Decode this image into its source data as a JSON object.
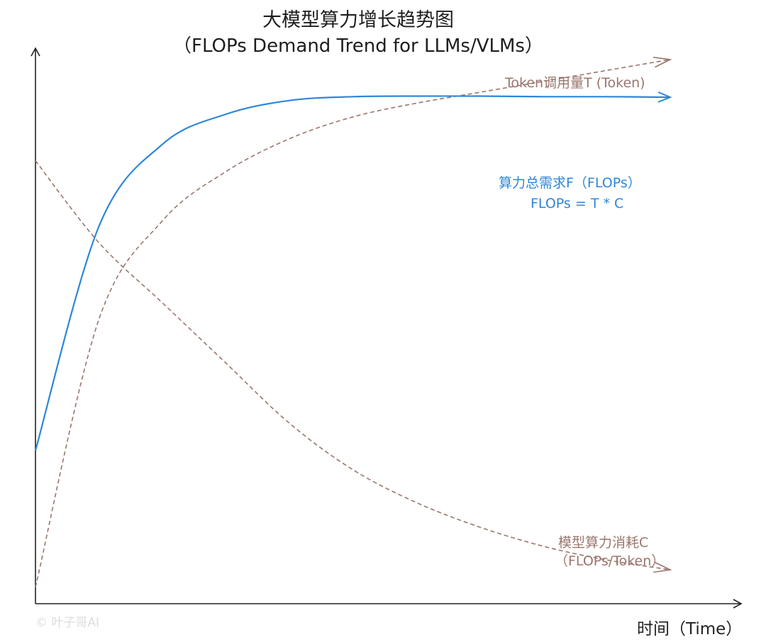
{
  "title": "大模型算力增长趋势图",
  "subtitle": "（FLOPs Demand Trend for LLMs/VLMs）",
  "xlabel": "时间（Time）",
  "watermark": "© 叶子哥AI",
  "colors": {
    "flops": "#2e86d9",
    "token": "#9a766c",
    "cost": "#9a766c",
    "axis": "#222222"
  },
  "chart_data": {
    "type": "line",
    "title": "大模型算力增长趋势图",
    "subtitle": "（FLOPs Demand Trend for LLMs/VLMs）",
    "xlabel": "时间（Time）",
    "ylabel": "",
    "x_ticks": "none",
    "y_ticks": "none",
    "grid": false,
    "legend": "none (series labelled inline at line ends)",
    "xlim": [
      0,
      10
    ],
    "ylim": [
      0,
      10
    ],
    "x": [
      0,
      1,
      2,
      3,
      4,
      5,
      6,
      7,
      8,
      9,
      10
    ],
    "series": [
      {
        "name": "Token调用量T (Token)",
        "label_lines": [
          "Token调用量T (Token)"
        ],
        "style": "dashed",
        "color": "#9a766c",
        "values": [
          0.3,
          5.2,
          7.0,
          7.9,
          8.5,
          8.9,
          9.15,
          9.35,
          9.55,
          9.75,
          9.95
        ]
      },
      {
        "name": "算力总需求F（FLOPs）",
        "label_lines": [
          "算力总需求F（FLOPs）",
          "FLOPs = T * C"
        ],
        "style": "solid",
        "color": "#2e86d9",
        "values": [
          2.8,
          6.9,
          8.4,
          8.95,
          9.2,
          9.27,
          9.28,
          9.28,
          9.27,
          9.27,
          9.26
        ]
      },
      {
        "name": "模型算力消耗C",
        "label_lines": [
          "模型算力消耗C",
          "（FLOPs/Token）"
        ],
        "style": "dashed",
        "color": "#9a766c",
        "values": [
          8.1,
          6.6,
          5.5,
          4.4,
          3.3,
          2.45,
          1.85,
          1.4,
          1.05,
          0.8,
          0.62
        ]
      }
    ]
  }
}
